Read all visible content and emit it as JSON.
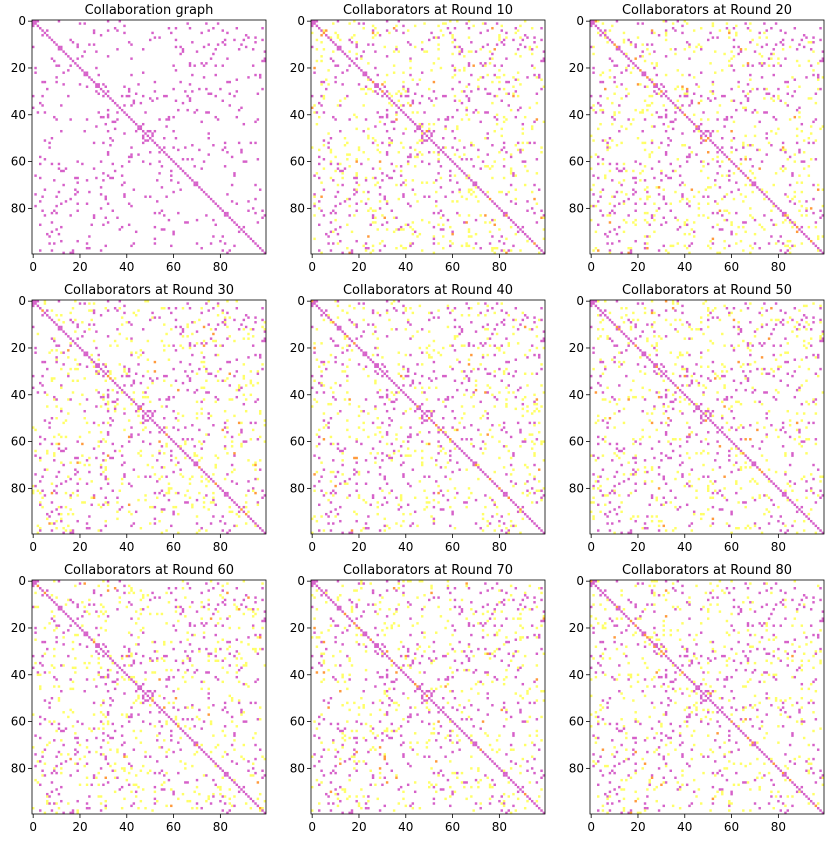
{
  "chart_data": [
    {
      "type": "heatmap",
      "title": "Collaboration graph",
      "n": 100,
      "seed": 11,
      "mode": "graph",
      "xticks": [
        "0",
        "20",
        "40",
        "60",
        "80"
      ],
      "yticks": [
        "0",
        "20",
        "40",
        "60",
        "80"
      ],
      "xlim": [
        0,
        99
      ],
      "ylim": [
        99,
        0
      ]
    },
    {
      "type": "heatmap",
      "title": "Collaborators at Round 10",
      "n": 100,
      "seed": 23,
      "mode": "round",
      "xticks": [
        "0",
        "20",
        "40",
        "60",
        "80"
      ],
      "yticks": [
        "0",
        "20",
        "40",
        "60",
        "80"
      ],
      "xlim": [
        0,
        99
      ],
      "ylim": [
        99,
        0
      ]
    },
    {
      "type": "heatmap",
      "title": "Collaborators at Round 20",
      "n": 100,
      "seed": 37,
      "mode": "round",
      "xticks": [
        "0",
        "20",
        "40",
        "60",
        "80"
      ],
      "yticks": [
        "0",
        "20",
        "40",
        "60",
        "80"
      ],
      "xlim": [
        0,
        99
      ],
      "ylim": [
        99,
        0
      ]
    },
    {
      "type": "heatmap",
      "title": "Collaborators at Round 30",
      "n": 100,
      "seed": 41,
      "mode": "round",
      "xticks": [
        "0",
        "20",
        "40",
        "60",
        "80"
      ],
      "yticks": [
        "0",
        "20",
        "40",
        "60",
        "80"
      ],
      "xlim": [
        0,
        99
      ],
      "ylim": [
        99,
        0
      ]
    },
    {
      "type": "heatmap",
      "title": "Collaborators at Round 40",
      "n": 100,
      "seed": 53,
      "mode": "round",
      "xticks": [
        "0",
        "20",
        "40",
        "60",
        "80"
      ],
      "yticks": [
        "0",
        "20",
        "40",
        "60",
        "80"
      ],
      "xlim": [
        0,
        99
      ],
      "ylim": [
        99,
        0
      ]
    },
    {
      "type": "heatmap",
      "title": "Collaborators at Round 50",
      "n": 100,
      "seed": 67,
      "mode": "round",
      "xticks": [
        "0",
        "20",
        "40",
        "60",
        "80"
      ],
      "yticks": [
        "0",
        "20",
        "40",
        "60",
        "80"
      ],
      "xlim": [
        0,
        99
      ],
      "ylim": [
        99,
        0
      ]
    },
    {
      "type": "heatmap",
      "title": "Collaborators at Round 60",
      "n": 100,
      "seed": 71,
      "mode": "round",
      "xticks": [
        "0",
        "20",
        "40",
        "60",
        "80"
      ],
      "yticks": [
        "0",
        "20",
        "40",
        "60",
        "80"
      ],
      "xlim": [
        0,
        99
      ],
      "ylim": [
        99,
        0
      ]
    },
    {
      "type": "heatmap",
      "title": "Collaborators at Round 70",
      "n": 100,
      "seed": 83,
      "mode": "round",
      "xticks": [
        "0",
        "20",
        "40",
        "60",
        "80"
      ],
      "yticks": [
        "0",
        "20",
        "40",
        "60",
        "80"
      ],
      "xlim": [
        0,
        99
      ],
      "ylim": [
        99,
        0
      ]
    },
    {
      "type": "heatmap",
      "title": "Collaborators at Round 80",
      "n": 100,
      "seed": 97,
      "mode": "round",
      "xticks": [
        "0",
        "20",
        "40",
        "60",
        "80"
      ],
      "yticks": [
        "0",
        "20",
        "40",
        "60",
        "80"
      ],
      "xlim": [
        0,
        99
      ],
      "ylim": [
        99,
        0
      ]
    }
  ],
  "colors": {
    "edge": "#d660c9",
    "selected": "#ffff66",
    "both": "#ff9a3c",
    "background": "#ffffff"
  }
}
